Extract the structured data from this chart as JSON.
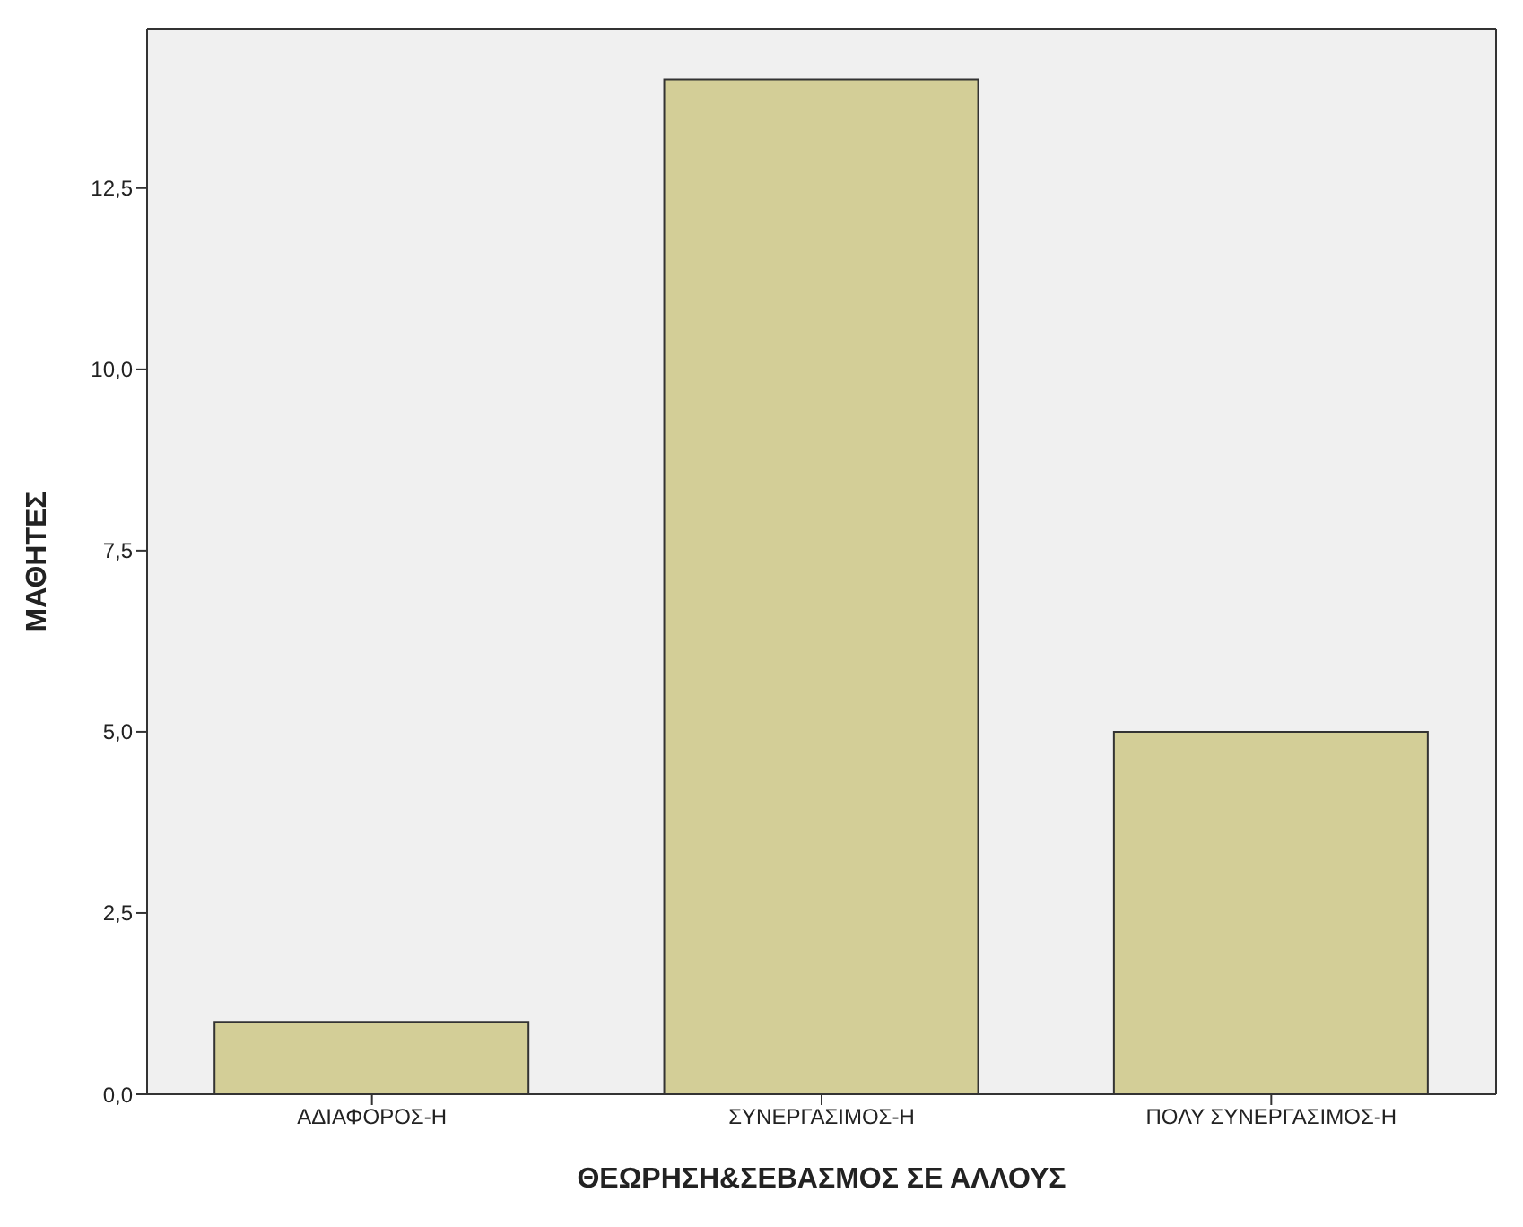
{
  "chart_data": {
    "type": "bar",
    "xlabel": "ΘΕΩΡΗΣΗ&ΣΕΒΑΣΜΟΣ ΣΕ ΑΛΛΟΥΣ",
    "ylabel": "ΜΑΘΗΤΕΣ",
    "categories": [
      "ΑΔΙΑΦΟΡΟΣ-Η",
      "ΣΥΝΕΡΓΑΣΙΜΟΣ-Η",
      "ΠΟΛΥ ΣΥΝΕΡΓΑΣΙΜΟΣ-Η"
    ],
    "values": [
      1,
      14,
      5
    ],
    "color": "#d3ce97",
    "ylim": [
      0,
      14.7
    ],
    "yticks": [
      {
        "value": 0,
        "label": "0,0"
      },
      {
        "value": 2.5,
        "label": "2,5"
      },
      {
        "value": 5,
        "label": "5,0"
      },
      {
        "value": 7.5,
        "label": "7,5"
      },
      {
        "value": 10,
        "label": "10,0"
      },
      {
        "value": 12.5,
        "label": "12,5"
      }
    ],
    "grid": false,
    "legend": false
  }
}
